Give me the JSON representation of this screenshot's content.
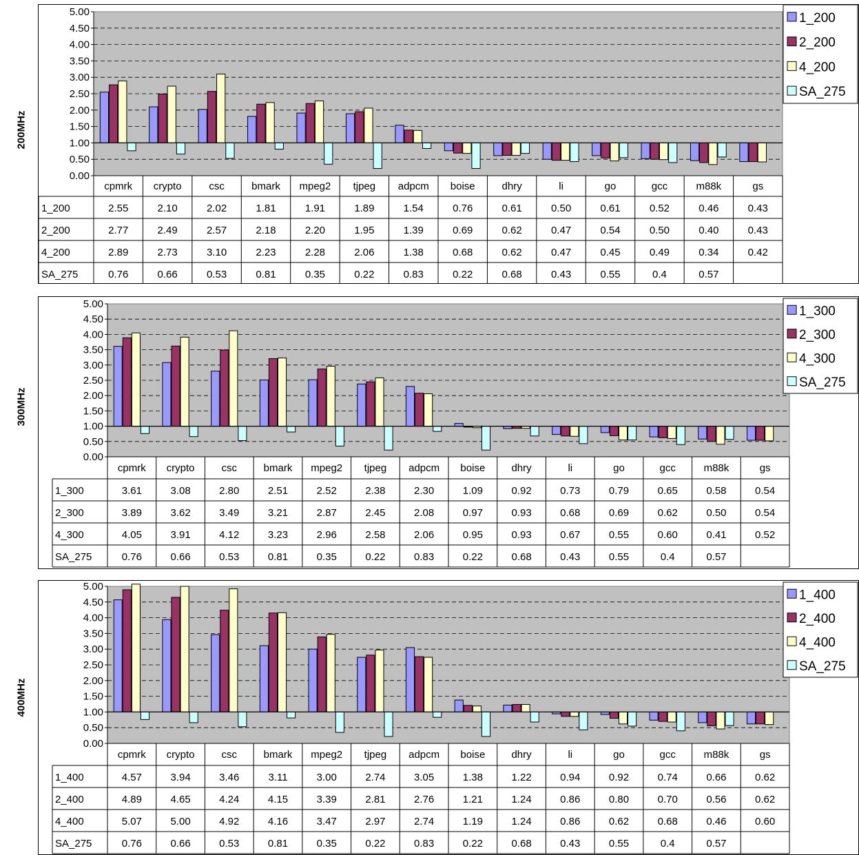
{
  "chart_data": [
    {
      "type": "bar",
      "title": "200MHz",
      "ylim": [
        0,
        5
      ],
      "y_ticks": [
        "5.00",
        "4.50",
        "4.00",
        "3.50",
        "3.00",
        "2.50",
        "2.00",
        "1.50",
        "1.00",
        "0.50",
        "0.00"
      ],
      "baseline": 1.0,
      "grid": true,
      "legend_position": "top-right",
      "categories": [
        "cpmrk",
        "crypto",
        "csc",
        "bmark",
        "mpeg2",
        "tjpeg",
        "adpcm",
        "boise",
        "dhry",
        "li",
        "go",
        "gcc",
        "m88k",
        "gs"
      ],
      "series": [
        {
          "name": "1_200",
          "color": "#9999ff",
          "values": [
            "2.55",
            "2.10",
            "2.02",
            "1.81",
            "1.91",
            "1.89",
            "1.54",
            "0.76",
            "0.61",
            "0.50",
            "0.61",
            "0.52",
            "0.46",
            "0.43"
          ]
        },
        {
          "name": "2_200",
          "color": "#993366",
          "values": [
            "2.77",
            "2.49",
            "2.57",
            "2.18",
            "2.20",
            "1.95",
            "1.39",
            "0.69",
            "0.62",
            "0.47",
            "0.54",
            "0.50",
            "0.40",
            "0.43"
          ]
        },
        {
          "name": "4_200",
          "color": "#ffffcc",
          "values": [
            "2.89",
            "2.73",
            "3.10",
            "2.23",
            "2.28",
            "2.06",
            "1.38",
            "0.68",
            "0.62",
            "0.47",
            "0.45",
            "0.49",
            "0.34",
            "0.42"
          ]
        },
        {
          "name": "SA_275",
          "color": "#ccffff",
          "values": [
            "0.76",
            "0.66",
            "0.53",
            "0.81",
            "0.35",
            "0.22",
            "0.83",
            "0.22",
            "0.68",
            "0.43",
            "0.55",
            "0.4",
            "0.57",
            ""
          ]
        }
      ]
    },
    {
      "type": "bar",
      "title": "300MHz",
      "ylim": [
        0,
        5
      ],
      "y_ticks": [
        "5.00",
        "4.50",
        "4.00",
        "3.50",
        "3.00",
        "2.50",
        "2.00",
        "1.50",
        "1.00",
        "0.50",
        "0.00"
      ],
      "baseline": 1.0,
      "grid": true,
      "legend_position": "top-right",
      "categories": [
        "cpmrk",
        "crypto",
        "csc",
        "bmark",
        "mpeg2",
        "tjpeg",
        "adpcm",
        "boise",
        "dhry",
        "li",
        "go",
        "gcc",
        "m88k",
        "gs"
      ],
      "series": [
        {
          "name": "1_300",
          "color": "#9999ff",
          "values": [
            "3.61",
            "3.08",
            "2.80",
            "2.51",
            "2.52",
            "2.38",
            "2.30",
            "1.09",
            "0.92",
            "0.73",
            "0.79",
            "0.65",
            "0.58",
            "0.54"
          ]
        },
        {
          "name": "2_300",
          "color": "#993366",
          "values": [
            "3.89",
            "3.62",
            "3.49",
            "3.21",
            "2.87",
            "2.45",
            "2.08",
            "0.97",
            "0.93",
            "0.68",
            "0.69",
            "0.62",
            "0.50",
            "0.54"
          ]
        },
        {
          "name": "4_300",
          "color": "#ffffcc",
          "values": [
            "4.05",
            "3.91",
            "4.12",
            "3.23",
            "2.96",
            "2.58",
            "2.06",
            "0.95",
            "0.93",
            "0.67",
            "0.55",
            "0.60",
            "0.41",
            "0.52"
          ]
        },
        {
          "name": "SA_275",
          "color": "#ccffff",
          "values": [
            "0.76",
            "0.66",
            "0.53",
            "0.81",
            "0.35",
            "0.22",
            "0.83",
            "0.22",
            "0.68",
            "0.43",
            "0.55",
            "0.4",
            "0.57",
            ""
          ]
        }
      ]
    },
    {
      "type": "bar",
      "title": "400MHz",
      "ylim": [
        0,
        5
      ],
      "y_ticks": [
        "5.00",
        "4.50",
        "4.00",
        "3.50",
        "3.00",
        "2.50",
        "2.00",
        "1.50",
        "1.00",
        "0.50",
        "0.00"
      ],
      "baseline": 1.0,
      "grid": true,
      "legend_position": "top-right",
      "categories": [
        "cpmrk",
        "crypto",
        "csc",
        "bmark",
        "mpeg2",
        "tjpeg",
        "adpcm",
        "boise",
        "dhry",
        "li",
        "go",
        "gcc",
        "m88k",
        "gs"
      ],
      "series": [
        {
          "name": "1_400",
          "color": "#9999ff",
          "values": [
            "4.57",
            "3.94",
            "3.46",
            "3.11",
            "3.00",
            "2.74",
            "3.05",
            "1.38",
            "1.22",
            "0.94",
            "0.92",
            "0.74",
            "0.66",
            "0.62"
          ]
        },
        {
          "name": "2_400",
          "color": "#993366",
          "values": [
            "4.89",
            "4.65",
            "4.24",
            "4.15",
            "3.39",
            "2.81",
            "2.76",
            "1.21",
            "1.24",
            "0.86",
            "0.80",
            "0.70",
            "0.56",
            "0.62"
          ]
        },
        {
          "name": "4_400",
          "color": "#ffffcc",
          "values": [
            "5.07",
            "5.00",
            "4.92",
            "4.16",
            "3.47",
            "2.97",
            "2.74",
            "1.19",
            "1.24",
            "0.86",
            "0.62",
            "0.68",
            "0.46",
            "0.60"
          ]
        },
        {
          "name": "SA_275",
          "color": "#ccffff",
          "values": [
            "0.76",
            "0.66",
            "0.53",
            "0.81",
            "0.35",
            "0.22",
            "0.83",
            "0.22",
            "0.68",
            "0.43",
            "0.55",
            "0.4",
            "0.57",
            ""
          ]
        }
      ]
    }
  ],
  "plot_background": "#c0c0c0"
}
